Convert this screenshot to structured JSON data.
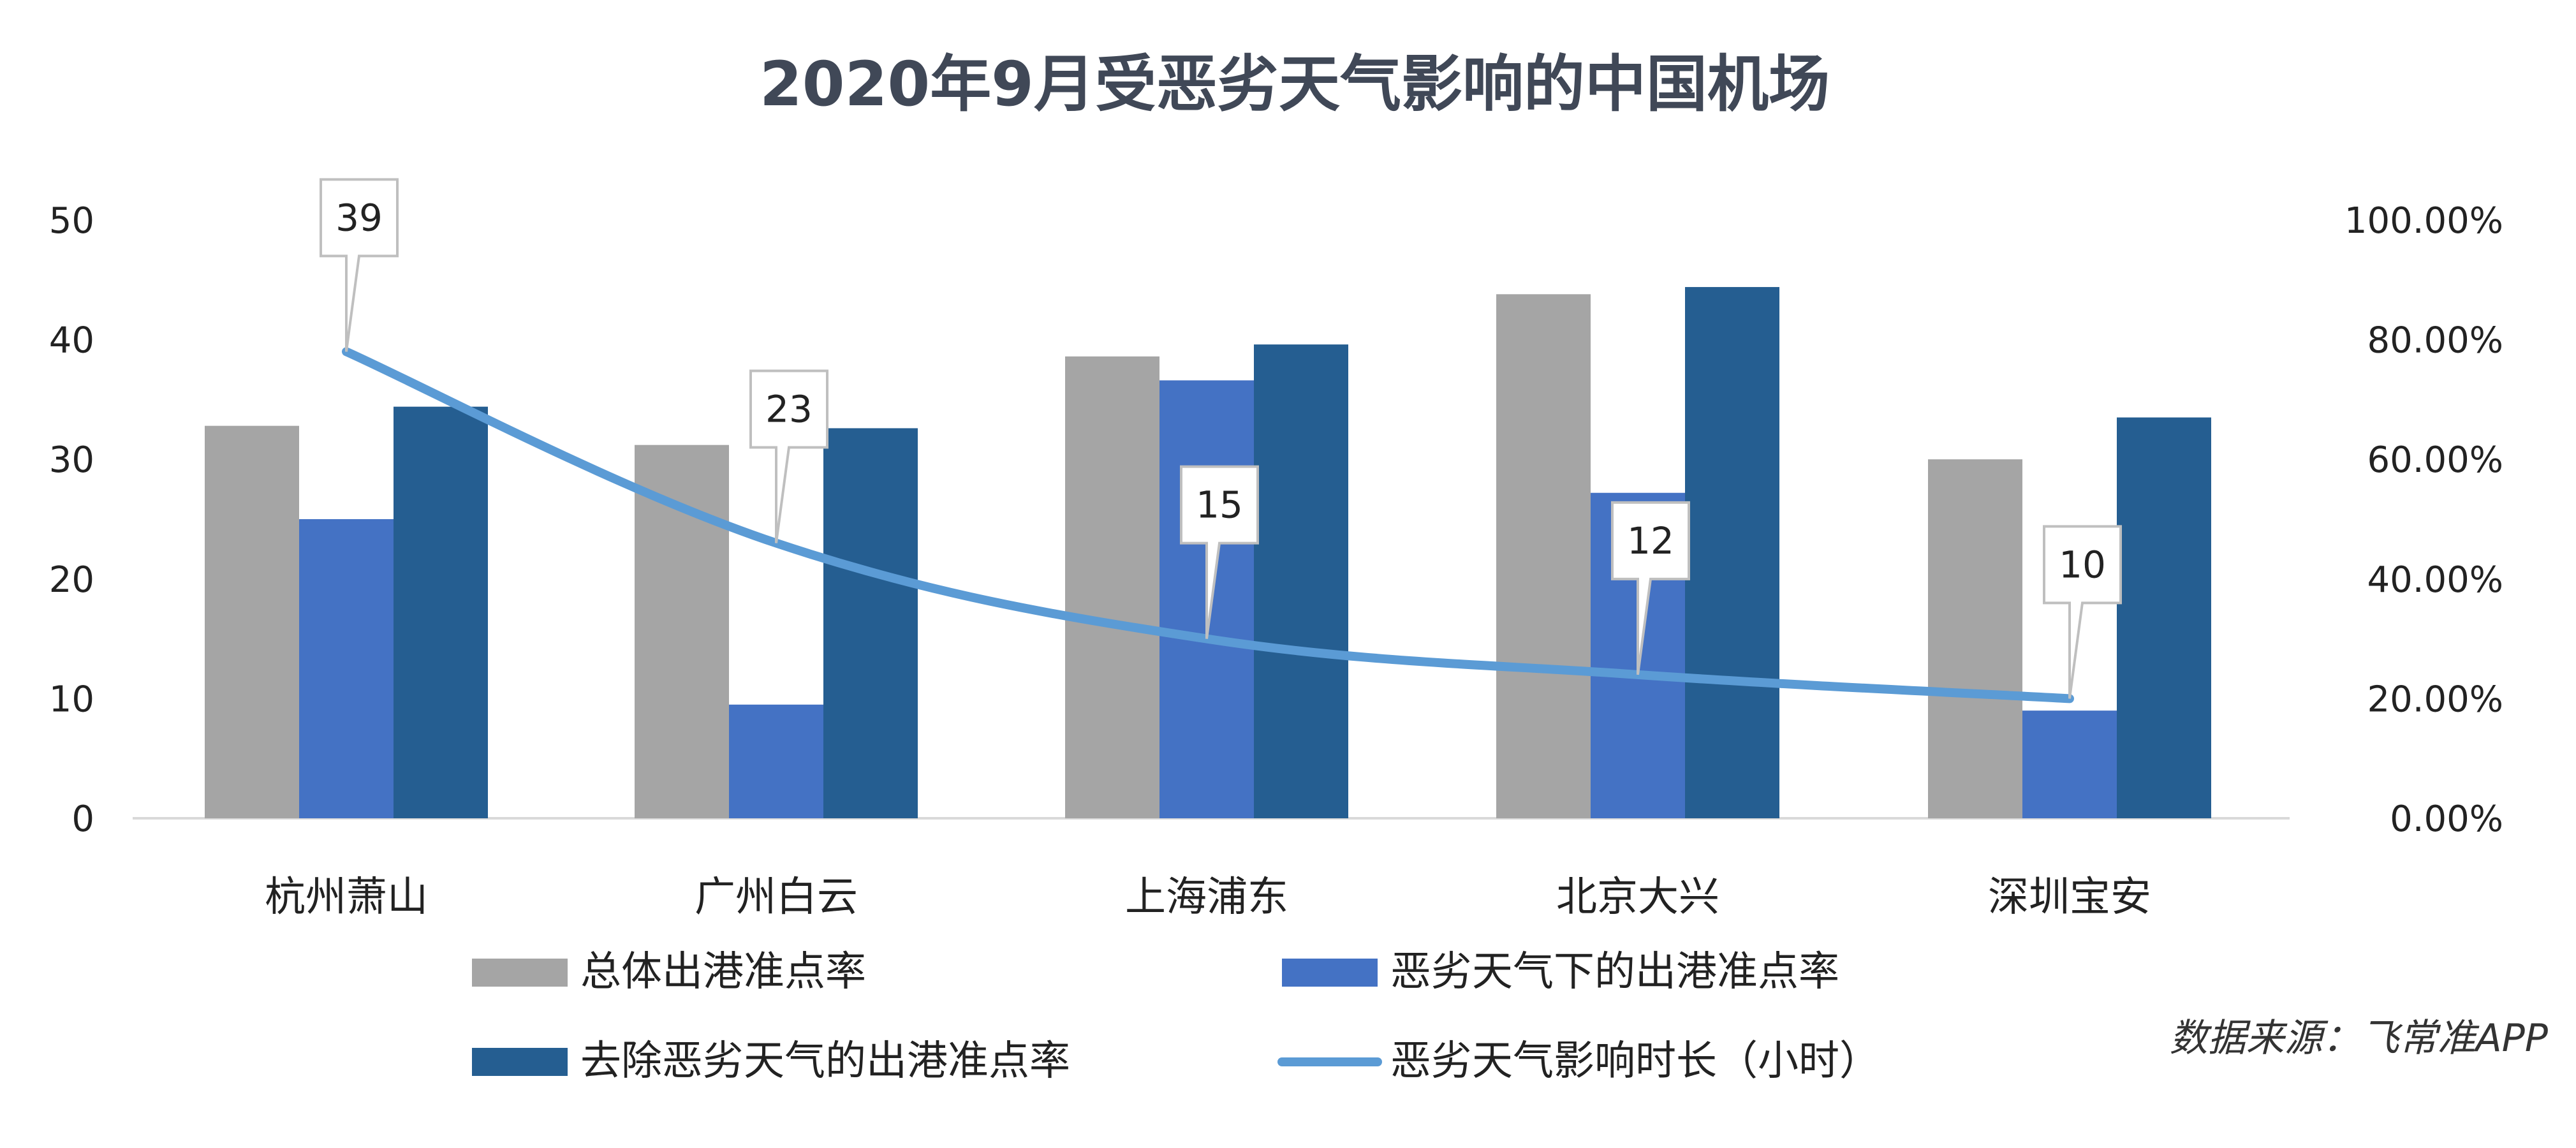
{
  "chart_data": {
    "type": "bar",
    "title": "2020年9月受恶劣天气影响的中国机场",
    "categories": [
      "杭州萧山",
      "广州白云",
      "上海浦东",
      "北京大兴",
      "深圳宝安"
    ],
    "left_axis": {
      "ylim": [
        0,
        50
      ],
      "ticks": [
        "0",
        "10",
        "20",
        "30",
        "40",
        "50"
      ]
    },
    "right_axis": {
      "ylim": [
        0,
        1.0
      ],
      "ticks": [
        "0.00%",
        "20.00%",
        "40.00%",
        "60.00%",
        "80.00%",
        "100.00%"
      ]
    },
    "series": [
      {
        "name": "总体出港准点率",
        "type": "bar",
        "axis": "right",
        "color": "#a5a5a5",
        "values": [
          0.656,
          0.624,
          0.772,
          0.876,
          0.6
        ]
      },
      {
        "name": "恶劣天气下的出港准点率",
        "type": "bar",
        "axis": "right",
        "color": "#4472c4",
        "values": [
          0.5,
          0.19,
          0.732,
          0.544,
          0.18
        ]
      },
      {
        "name": "去除恶劣天气的出港准点率",
        "type": "bar",
        "axis": "right",
        "color": "#255e91",
        "values": [
          0.688,
          0.652,
          0.792,
          0.888,
          0.67
        ]
      },
      {
        "name": "恶劣天气影响时长（小时）",
        "type": "line",
        "axis": "left",
        "color": "#5b9bd5",
        "values": [
          39,
          23,
          15,
          12,
          10
        ],
        "labels": [
          "39",
          "23",
          "15",
          "12",
          "10"
        ]
      }
    ],
    "legend_placement": "bottom",
    "grid": false,
    "source": "数据来源：飞常准APP"
  }
}
